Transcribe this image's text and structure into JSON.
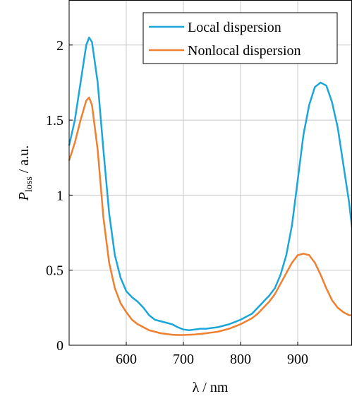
{
  "chart_data": {
    "type": "line",
    "xlabel": "λ / nm",
    "ylabel": {
      "symbol": "P",
      "subscript": "loss",
      "unit": "/ a.u."
    },
    "x": [
      500,
      510,
      520,
      530,
      535,
      540,
      550,
      560,
      570,
      580,
      590,
      600,
      610,
      620,
      630,
      640,
      650,
      660,
      670,
      680,
      690,
      700,
      710,
      720,
      730,
      740,
      750,
      760,
      770,
      780,
      790,
      800,
      810,
      820,
      830,
      840,
      850,
      860,
      870,
      880,
      890,
      900,
      910,
      920,
      930,
      940,
      950,
      960,
      970,
      980,
      990,
      995
    ],
    "series": [
      {
        "name": "Local dispersion",
        "color": "#1ba6d9",
        "values": [
          1.33,
          1.5,
          1.75,
          2.0,
          2.05,
          2.02,
          1.75,
          1.3,
          0.88,
          0.6,
          0.45,
          0.36,
          0.32,
          0.29,
          0.25,
          0.2,
          0.17,
          0.16,
          0.15,
          0.14,
          0.12,
          0.105,
          0.1,
          0.105,
          0.11,
          0.11,
          0.115,
          0.12,
          0.13,
          0.14,
          0.155,
          0.17,
          0.19,
          0.21,
          0.25,
          0.29,
          0.33,
          0.38,
          0.47,
          0.6,
          0.8,
          1.1,
          1.4,
          1.6,
          1.72,
          1.75,
          1.73,
          1.62,
          1.45,
          1.2,
          0.95,
          0.78
        ]
      },
      {
        "name": "Nonlocal dispersion",
        "color": "#f07f2f",
        "values": [
          1.23,
          1.35,
          1.5,
          1.63,
          1.65,
          1.6,
          1.3,
          0.85,
          0.55,
          0.38,
          0.28,
          0.22,
          0.17,
          0.14,
          0.12,
          0.1,
          0.09,
          0.08,
          0.075,
          0.07,
          0.068,
          0.068,
          0.07,
          0.072,
          0.075,
          0.08,
          0.085,
          0.09,
          0.1,
          0.11,
          0.125,
          0.14,
          0.16,
          0.18,
          0.21,
          0.25,
          0.29,
          0.34,
          0.41,
          0.48,
          0.55,
          0.6,
          0.61,
          0.6,
          0.55,
          0.47,
          0.38,
          0.3,
          0.25,
          0.22,
          0.2,
          0.2
        ]
      }
    ],
    "xlim": [
      500,
      995
    ],
    "ylim": [
      0,
      2.3
    ],
    "xticks": [
      600,
      700,
      800,
      900
    ],
    "yticks": [
      0,
      0.5,
      1,
      1.5,
      2
    ],
    "grid": true,
    "legend": "top-right"
  }
}
